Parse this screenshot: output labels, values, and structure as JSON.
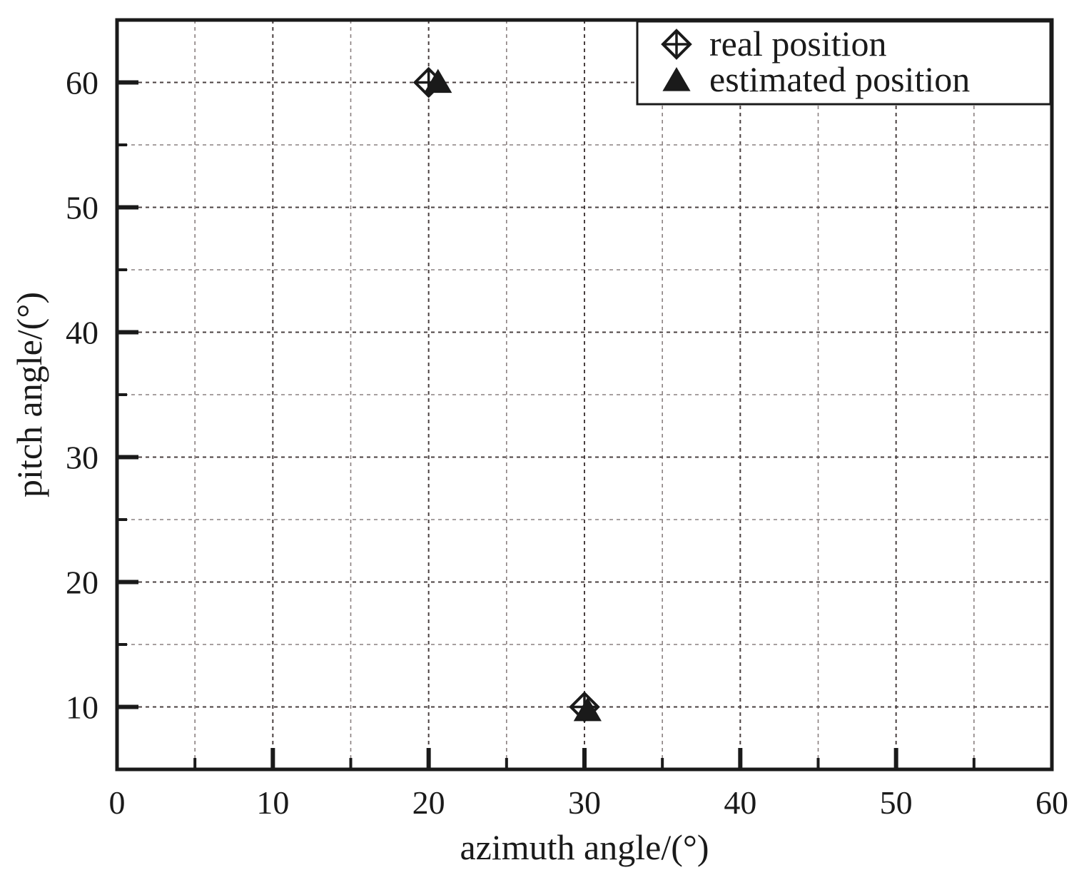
{
  "chart_data": {
    "type": "scatter",
    "xlabel": "azimuth angle/(°)",
    "ylabel": "pitch angle/(°)",
    "xlim": [
      0,
      60
    ],
    "ylim": [
      5,
      65
    ],
    "xticks": [
      0,
      10,
      20,
      30,
      40,
      50,
      60
    ],
    "xtick_labels": [
      "0",
      "10",
      "20",
      "30",
      "40",
      "50",
      "60"
    ],
    "yticks": [
      10,
      20,
      30,
      40,
      50,
      60
    ],
    "ytick_labels": [
      "10",
      "20",
      "30",
      "40",
      "50",
      "60"
    ],
    "grid": true,
    "legend_position": "top-right",
    "series": [
      {
        "name": "real position",
        "marker": "diamond-plus",
        "color": "#1a1a1a",
        "points": [
          {
            "x": 20,
            "y": 60
          },
          {
            "x": 30,
            "y": 10
          }
        ]
      },
      {
        "name": "estimated position",
        "marker": "triangle",
        "color": "#1a1a1a",
        "points": [
          {
            "x": 20.6,
            "y": 60
          },
          {
            "x": 30.2,
            "y": 9.7
          }
        ]
      }
    ]
  }
}
